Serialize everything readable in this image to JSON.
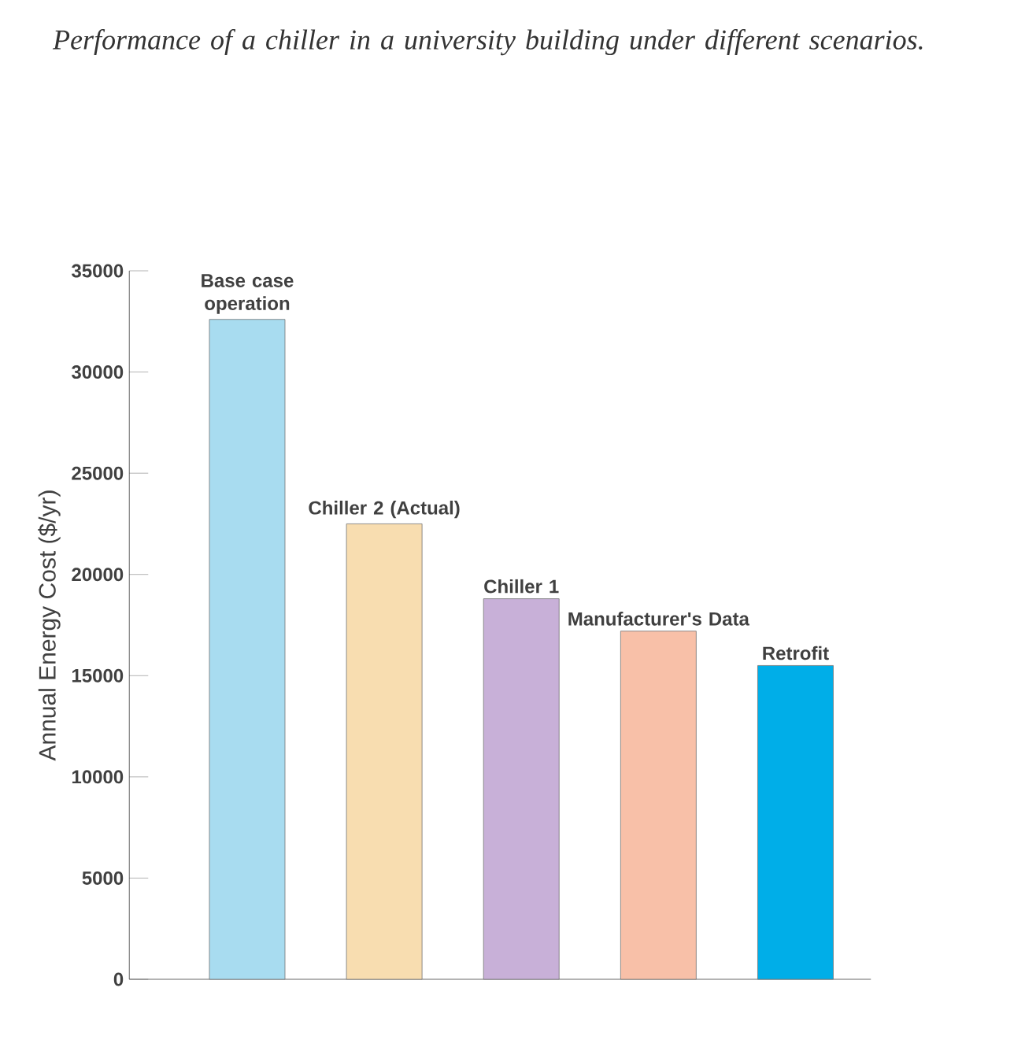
{
  "chart_data": {
    "type": "bar",
    "title": "Performance of a chiller in a university building under different scenarios.",
    "ylabel": "Annual Energy Cost ($/yr)",
    "categories": [
      "Base case operation",
      "Chiller 2 (Actual)",
      "Chiller 1",
      "Manufacturer's Data",
      "Retrofit"
    ],
    "values": [
      32600,
      22500,
      18800,
      17200,
      15500
    ],
    "colors": [
      "#a8dcf0",
      "#f8ddb0",
      "#c8b0d8",
      "#f8c0a8",
      "#00aee8"
    ],
    "ylim": [
      0,
      35000
    ],
    "yticks": [
      0,
      5000,
      10000,
      15000,
      20000,
      25000,
      30000,
      35000
    ],
    "grid": false
  }
}
